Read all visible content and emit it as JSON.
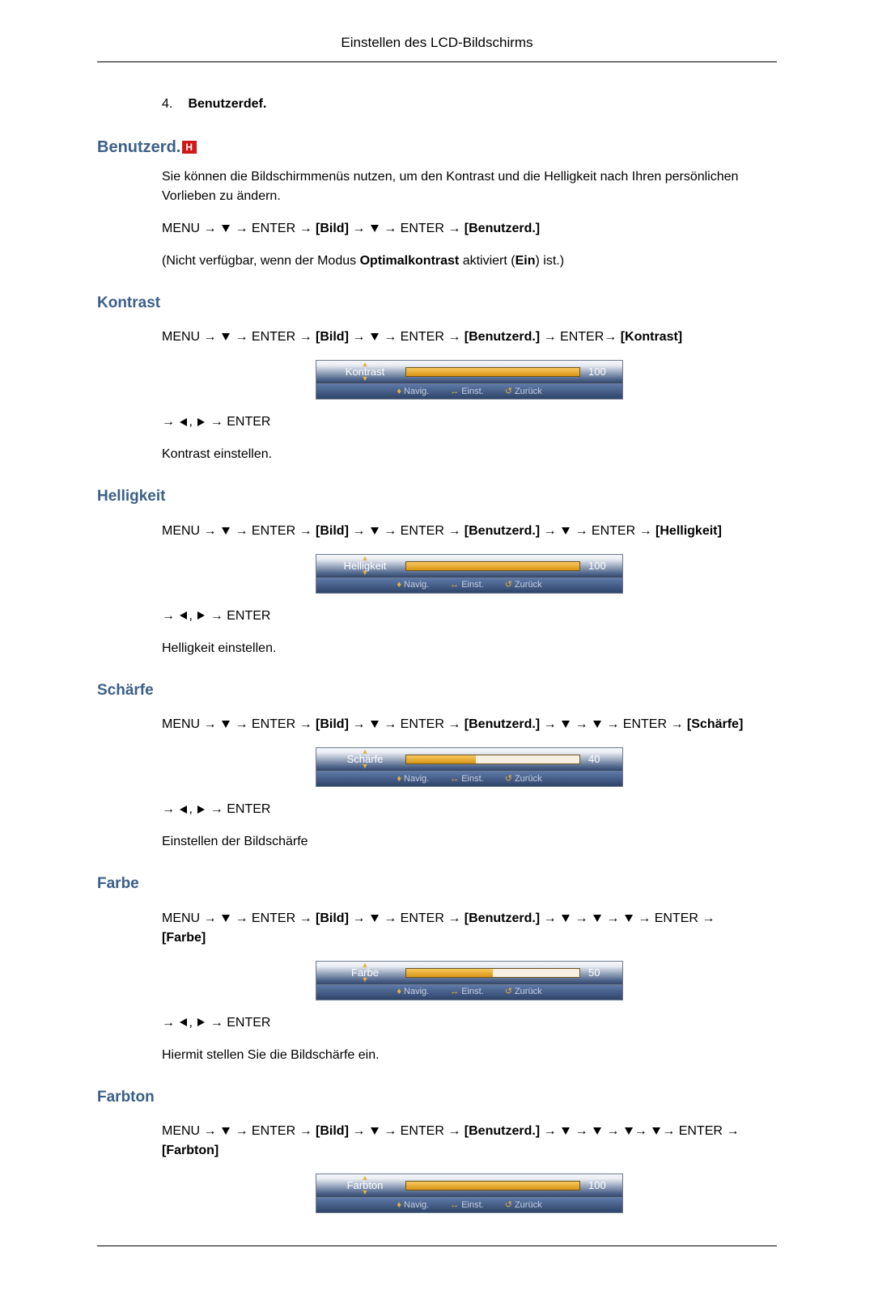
{
  "header": {
    "title": "Einstellen des LCD-Bildschirms"
  },
  "listItem": {
    "num": "4.",
    "label": "Benutzerdef."
  },
  "benutzerd": {
    "heading": "Benutzerd.",
    "desc": "Sie können die Bildschirmmenüs nutzen, um den Kontrast und die Helligkeit nach Ihren persönlichen Vorlieben zu ändern.",
    "path_prefix": "MENU → ",
    "path_enter": " → ENTER → ",
    "path_bild": "[Bild]",
    "path_tail": " → ENTER → ",
    "path_benutzerd": "[Benutzerd.]",
    "note_before": "(Nicht verfügbar, wenn der Modus ",
    "note_bold1": "Optimalkontrast",
    "note_mid": " aktiviert (",
    "note_bold2": "Ein",
    "note_after": ") ist.)"
  },
  "osd_footer": {
    "nav": "Navig.",
    "einst": "Einst.",
    "zuruck": "Zurück",
    "nav_icon": "♦",
    "einst_icon": "↔",
    "zuruck_icon": "↺"
  },
  "adjust_tail": " → ENTER",
  "sections": {
    "kontrast": {
      "heading": "Kontrast",
      "path_suffix": " → ENTER→ ",
      "path_target": "[Kontrast]",
      "osd_label": "Kontrast",
      "osd_value": "100",
      "osd_fill_pct": 100,
      "desc": "Kontrast einstellen."
    },
    "helligkeit": {
      "heading": "Helligkeit",
      "path_mid": " → ",
      "path_suffix": " → ENTER → ",
      "path_target": "[Helligkeit]",
      "osd_label": "Helligkeit",
      "osd_value": "100",
      "osd_fill_pct": 100,
      "desc": "Helligkeit einstellen."
    },
    "schaerfe": {
      "heading": "Schärfe",
      "path_suffix": " → ENTER → ",
      "path_target": "[Schärfe]",
      "osd_label": "Schärfe",
      "osd_value": "40",
      "osd_fill_pct": 40,
      "desc": "Einstellen der Bildschärfe"
    },
    "farbe": {
      "heading": "Farbe",
      "path_suffix": " → ENTER → ",
      "path_target": "[Farbe]",
      "osd_label": "Farbe",
      "osd_value": "50",
      "osd_fill_pct": 50,
      "desc": "Hiermit stellen Sie die Bildschärfe ein."
    },
    "farbton": {
      "heading": "Farbton",
      "path_suffix": "→ ENTER → ",
      "path_target": "[Farbton]",
      "osd_label": "Farbton",
      "osd_value": "100",
      "osd_fill_pct": 100
    }
  },
  "colors": {
    "heading": "#3b5f8a",
    "osd_bg_from": "#f5f7fb",
    "osd_bg_to": "#324768",
    "bar_fill_from": "#f8c95f",
    "bar_fill_to": "#d99516",
    "footer_accent": "#e7b13b"
  }
}
